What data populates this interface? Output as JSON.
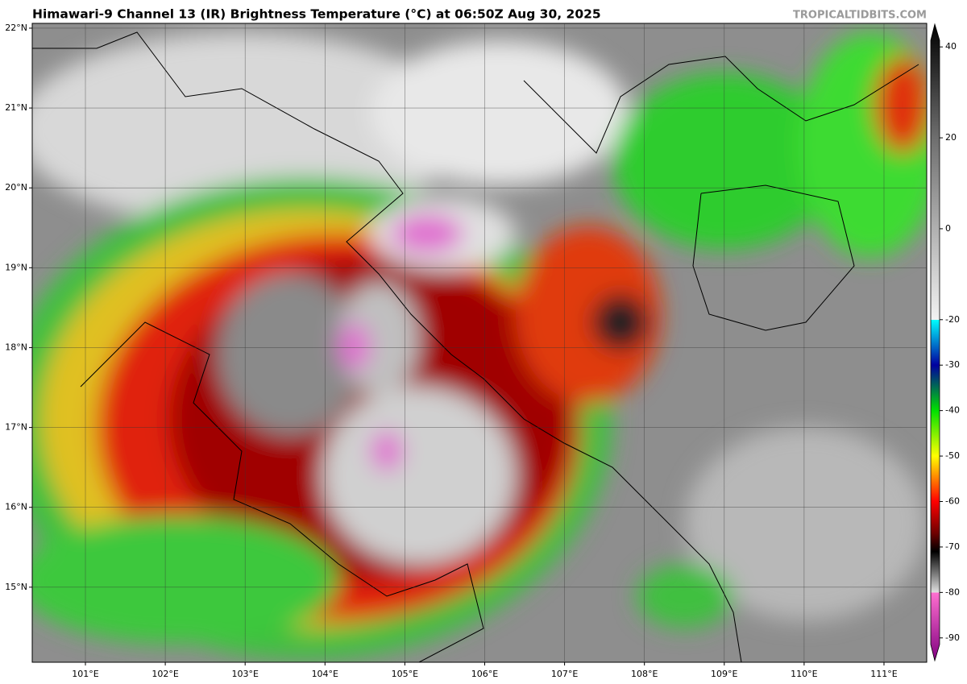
{
  "map": {
    "title": "Himawari-9 Channel 13 (IR) Brightness Temperature (°C) at 06:50Z Aug 30, 2025",
    "watermark": "TROPICALTIDBITS.COM",
    "lonlim": [
      100.334,
      111.535
    ],
    "latlim": [
      14.06,
      22.06
    ],
    "lon_ticks": [
      {
        "value": 101,
        "label": "101°E"
      },
      {
        "value": 102,
        "label": "102°E"
      },
      {
        "value": 103,
        "label": "103°E"
      },
      {
        "value": 104,
        "label": "104°E"
      },
      {
        "value": 105,
        "label": "105°E"
      },
      {
        "value": 106,
        "label": "106°E"
      },
      {
        "value": 107,
        "label": "107°E"
      },
      {
        "value": 108,
        "label": "108°E"
      },
      {
        "value": 109,
        "label": "109°E"
      },
      {
        "value": 110,
        "label": "110°E"
      },
      {
        "value": 111,
        "label": "111°E"
      }
    ],
    "lat_ticks": [
      {
        "value": 15,
        "label": "15°N"
      },
      {
        "value": 16,
        "label": "16°N"
      },
      {
        "value": 17,
        "label": "17°N"
      },
      {
        "value": 18,
        "label": "18°N"
      },
      {
        "value": 19,
        "label": "19°N"
      },
      {
        "value": 20,
        "label": "20°N"
      },
      {
        "value": 21,
        "label": "21°N"
      },
      {
        "value": 22,
        "label": "22°N"
      }
    ]
  },
  "colorbar": {
    "lim": [
      -95,
      45
    ],
    "ticks": [
      40,
      20,
      0,
      -20,
      -30,
      -40,
      -50,
      -60,
      -70,
      -80,
      -90
    ],
    "scale": [
      {
        "value": 45,
        "color": "#000000"
      },
      {
        "value": 20,
        "color": "#6e6e6e"
      },
      {
        "value": -20,
        "color": "#f2f2f2"
      },
      {
        "value": -20.01,
        "color": "#00ffff"
      },
      {
        "value": -30,
        "color": "#0000a0"
      },
      {
        "value": -40,
        "color": "#00e000"
      },
      {
        "value": -50,
        "color": "#ffff00"
      },
      {
        "value": -60,
        "color": "#ff0000"
      },
      {
        "value": -67,
        "color": "#6e0000"
      },
      {
        "value": -71,
        "color": "#000000"
      },
      {
        "value": -80,
        "color": "#e0e0e0"
      },
      {
        "value": -80.01,
        "color": "#ff70d0"
      },
      {
        "value": -95,
        "color": "#800080"
      }
    ]
  }
}
